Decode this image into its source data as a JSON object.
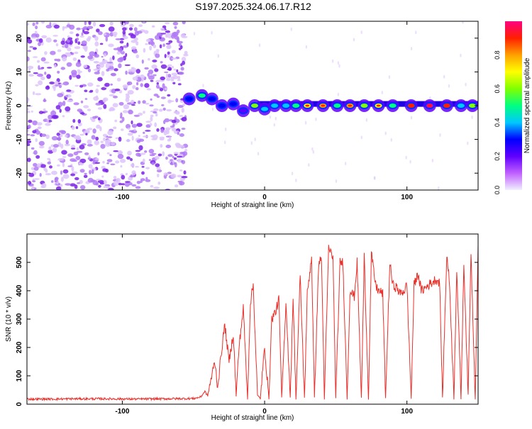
{
  "title": "S197.2025.324.06.17.R12",
  "colors": {
    "snr_line": "#e8302a",
    "noise": "#9a4df0",
    "axis": "#000000",
    "colorbar_stops": [
      "#f0f0ff",
      "#c060ff",
      "#6000ff",
      "#0000ff",
      "#00c8ff",
      "#00ff80",
      "#80ff00",
      "#ffff00",
      "#ffa000",
      "#ff2000",
      "#ff0080"
    ]
  },
  "chart_data": [
    {
      "type": "heatmap",
      "title": "S197.2025.324.06.17.R12",
      "xlabel": "Height of straight line (km)",
      "ylabel": "Frequency (Hz)",
      "xlim": [
        -167,
        150
      ],
      "ylim": [
        -25,
        25
      ],
      "x_ticks": [
        -100,
        0,
        100
      ],
      "x_tick_labels": [
        "-100",
        "0",
        "100"
      ],
      "y_ticks": [
        -20,
        -10,
        0,
        10,
        20
      ],
      "y_tick_labels": [
        "-20",
        "-10",
        "0",
        "10",
        "20"
      ],
      "colorbar": {
        "label": "Normalized spectral amplitude",
        "range": [
          0,
          1
        ],
        "ticks": [
          0.0,
          0.2,
          0.4,
          0.6,
          0.8
        ],
        "tick_labels": [
          "0.0",
          "0.2",
          "0.4",
          "0.6",
          "0.8"
        ]
      },
      "noise_region_end_km": -55,
      "tone_frequency_hz": 0.5,
      "blobs": [
        {
          "x": -53,
          "y": 2,
          "a": 0.3
        },
        {
          "x": -44,
          "y": 3,
          "a": 0.45
        },
        {
          "x": -37,
          "y": 2,
          "a": 0.3
        },
        {
          "x": -30,
          "y": 0,
          "a": 0.25
        },
        {
          "x": -22,
          "y": 0.5,
          "a": 0.3
        },
        {
          "x": -15,
          "y": -1.5,
          "a": 0.15
        },
        {
          "x": -7,
          "y": 0,
          "a": 0.55
        },
        {
          "x": 0,
          "y": -1,
          "a": 0.4
        },
        {
          "x": 7,
          "y": 0,
          "a": 0.35
        },
        {
          "x": 15,
          "y": 0,
          "a": 0.4
        },
        {
          "x": 22,
          "y": 0,
          "a": 0.5
        },
        {
          "x": 30,
          "y": 0,
          "a": 0.7
        },
        {
          "x": 41,
          "y": 0,
          "a": 0.75
        },
        {
          "x": 51,
          "y": 0,
          "a": 0.5
        },
        {
          "x": 60,
          "y": 0,
          "a": 0.75
        },
        {
          "x": 70,
          "y": 0,
          "a": 0.6
        },
        {
          "x": 80,
          "y": 0,
          "a": 0.7
        },
        {
          "x": 90,
          "y": 0,
          "a": 0.45
        },
        {
          "x": 103,
          "y": 0,
          "a": 0.9
        },
        {
          "x": 116,
          "y": 0,
          "a": 0.95
        },
        {
          "x": 128,
          "y": 0,
          "a": 0.9
        },
        {
          "x": 138,
          "y": 0,
          "a": 0.4
        },
        {
          "x": 146,
          "y": 0,
          "a": 0.55
        }
      ]
    },
    {
      "type": "line",
      "xlabel": "Height of straight line (km)",
      "ylabel": "SNR (10 * v/v)",
      "xlim": [
        -167,
        150
      ],
      "ylim": [
        0,
        600
      ],
      "x_ticks": [
        -100,
        0,
        100
      ],
      "x_tick_labels": [
        "-100",
        "0",
        "100"
      ],
      "y_ticks": [
        0,
        100,
        200,
        300,
        400,
        500
      ],
      "y_tick_labels": [
        "0",
        "100",
        "200",
        "300",
        "400",
        "500"
      ],
      "series": [
        {
          "name": "SNR",
          "x": [
            -167,
            -150,
            -130,
            -110,
            -90,
            -70,
            -50,
            -45,
            -42,
            -40,
            -38,
            -35,
            -33,
            -30,
            -28,
            -25,
            -22,
            -20,
            -18,
            -15,
            -12,
            -10,
            -8,
            -5,
            -3,
            0,
            3,
            5,
            8,
            10,
            12,
            15,
            18,
            20,
            22,
            25,
            28,
            30,
            33,
            35,
            38,
            40,
            42,
            45,
            48,
            50,
            53,
            55,
            58,
            60,
            63,
            65,
            68,
            70,
            73,
            75,
            78,
            80,
            83,
            85,
            88,
            90,
            93,
            95,
            98,
            100,
            103,
            105,
            108,
            110,
            113,
            115,
            118,
            120,
            123,
            125,
            128,
            130,
            133,
            135,
            138,
            140,
            143,
            145,
            148,
            150
          ],
          "y": [
            18,
            18,
            19,
            19,
            18,
            19,
            20,
            25,
            45,
            30,
            80,
            150,
            60,
            200,
            280,
            150,
            250,
            30,
            200,
            340,
            20,
            360,
            420,
            30,
            20,
            200,
            20,
            300,
            330,
            370,
            20,
            360,
            20,
            380,
            20,
            450,
            20,
            390,
            520,
            20,
            500,
            510,
            20,
            550,
            520,
            20,
            500,
            500,
            20,
            400,
            380,
            500,
            20,
            520,
            20,
            530,
            420,
            400,
            390,
            20,
            500,
            420,
            410,
            390,
            400,
            420,
            20,
            420,
            460,
            400,
            410,
            420,
            430,
            440,
            430,
            20,
            530,
            420,
            20,
            480,
            20,
            500,
            30,
            540,
            20,
            560
          ]
        }
      ]
    }
  ]
}
